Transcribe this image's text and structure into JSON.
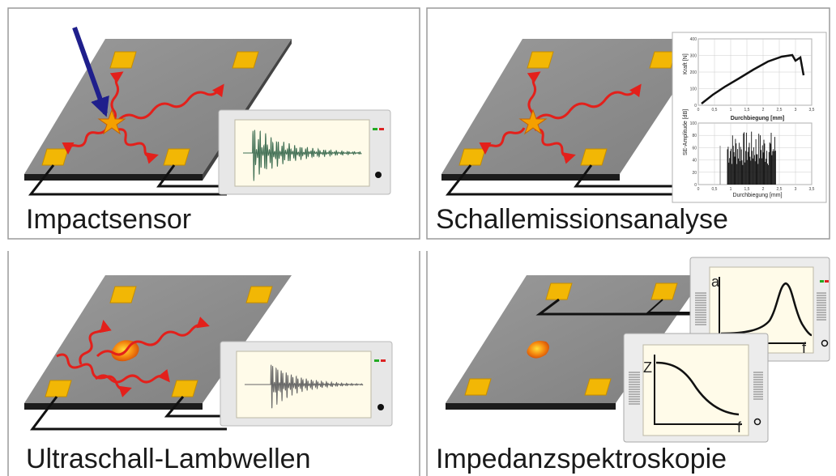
{
  "panels": [
    {
      "id": "impact",
      "caption": "Impactsensor",
      "colors": {
        "plate": "#8c8c8c",
        "sensor": "#f2b705",
        "wave": "#e3201b",
        "arrow": "#1f1f8c"
      }
    },
    {
      "id": "acoustic",
      "caption": "Schallemissionsanalyse",
      "inset_top": {
        "xlabel": "Durchbiegung [mm]",
        "ylabel": "Kraft [N]",
        "x_ticks": [
          "0",
          "0,5",
          "1",
          "1,5",
          "2",
          "2,5",
          "3",
          "3,5"
        ],
        "y_ticks": [
          "0",
          "100",
          "200",
          "300",
          "400"
        ]
      },
      "inset_bottom": {
        "xlabel": "Durchbiegung [mm]",
        "ylabel": "SE-Amplitude [dB]",
        "x_ticks": [
          "0",
          "0,5",
          "1",
          "1,5",
          "2",
          "2,5",
          "3",
          "3,5"
        ],
        "y_ticks": [
          "0",
          "20",
          "40",
          "60",
          "80",
          "100"
        ]
      }
    },
    {
      "id": "lamb",
      "caption": "Ultraschall-Lambwellen"
    },
    {
      "id": "impedance",
      "caption": "Impedanzspektroskopie",
      "screen_top": {
        "y_axis_label": "a",
        "x_axis_label": "f"
      },
      "screen_bottom": {
        "y_axis_label": "Z",
        "x_axis_label": "f"
      }
    }
  ]
}
